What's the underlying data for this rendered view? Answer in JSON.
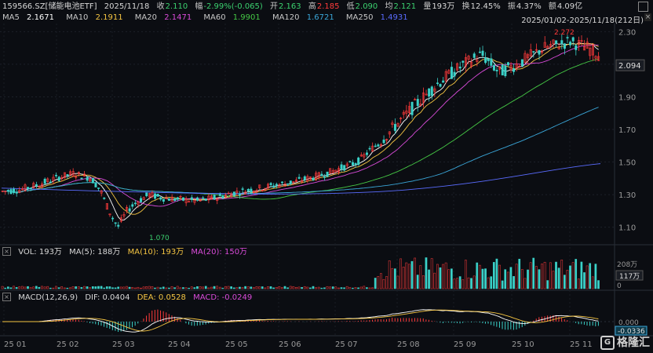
{
  "header": {
    "code_name": "159566.SZ[储能电池ETF]",
    "date": "2025/11/18",
    "close_label": "收",
    "close": "2.110",
    "change_label": "幅",
    "change": "-2.99%(-0.065)",
    "open_label": "开",
    "open": "2.163",
    "high_label": "高",
    "high": "2.185",
    "low_label": "低",
    "low": "2.090",
    "avg_label": "均",
    "avg": "2.121",
    "vol_label": "量",
    "vol": "193万",
    "turnover_label": "换",
    "turnover": "12.45%",
    "amp_label": "振",
    "amp": "4.37%",
    "amount_label": "额",
    "amount": "4.09亿"
  },
  "ma_legend": [
    {
      "label": "MA5",
      "value": "2.1671",
      "color": "#ffffff"
    },
    {
      "label": "MA10",
      "value": "2.1911",
      "color": "#f5c542"
    },
    {
      "label": "MA20",
      "value": "2.1471",
      "color": "#d94bd9"
    },
    {
      "label": "MA60",
      "value": "1.9901",
      "color": "#45c845"
    },
    {
      "label": "MA120",
      "value": "1.6721",
      "color": "#3aa6d8"
    },
    {
      "label": "MA250",
      "value": "1.4931",
      "color": "#5a6cff"
    }
  ],
  "range": "2025/01/02-2025/11/18(212日)",
  "price_axis": [
    "2.30",
    "2.10",
    "1.90",
    "1.70",
    "1.50",
    "1.30",
    "1.10"
  ],
  "last_price_tag": "2.094",
  "high_marker": "2.272",
  "low_marker": "1.070",
  "volume_legend": {
    "vol": "VOL: 193万",
    "ma5": "MA(5): 188万",
    "ma10": "MA(10): 193万",
    "ma20": "MA(20): 150万",
    "axis_top": "208万",
    "axis_tag": "117万",
    "axis_zero": "0"
  },
  "macd_legend": {
    "name": "MACD(12,26,9)",
    "dif": "DIF: 0.0404",
    "dea": "DEA: 0.0528",
    "macd": "MACD: -0.0249",
    "axis_zero": "0.000",
    "axis_tag": "-0.0336"
  },
  "x_axis": [
    "25 01",
    "25 02",
    "25 03",
    "25 04",
    "25 05",
    "25 06",
    "25 07",
    "25 08",
    "25 09",
    "25 10",
    "25 11"
  ],
  "logo": "格隆汇",
  "colors": {
    "up": "#ff3b3b",
    "down": "#3bd1c8",
    "bg": "#0b0d12",
    "grid": "#1c2029"
  }
}
